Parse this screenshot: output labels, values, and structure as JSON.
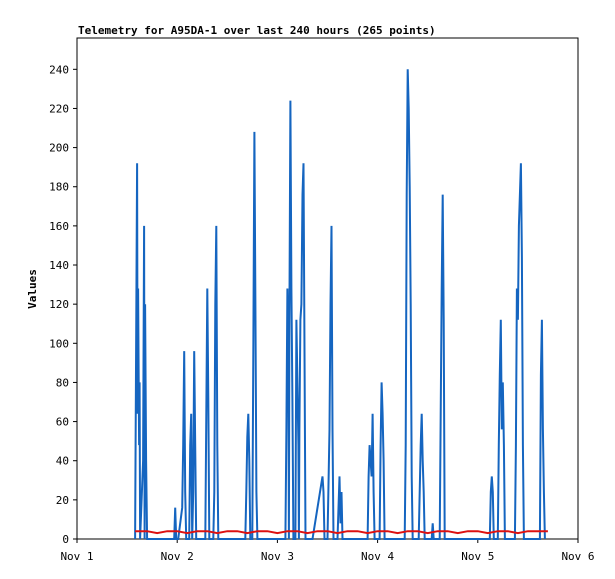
{
  "chart_data": {
    "type": "line",
    "title": "Telemetry for A95DA-1 over last 240 hours (265 points)",
    "xlabel": "",
    "ylabel": "Values",
    "x_ticks": [
      "Nov 1",
      "Nov 2",
      "Nov 3",
      "Nov 4",
      "Nov 5",
      "Nov 6"
    ],
    "xlim": [
      0,
      5
    ],
    "y_ticks": [
      0,
      20,
      40,
      60,
      80,
      100,
      120,
      140,
      160,
      180,
      200,
      220,
      240
    ],
    "ylim": [
      0,
      256
    ],
    "grid": false,
    "legend": "none",
    "series": [
      {
        "color": "#1565c0",
        "points": [
          [
            0.58,
            0
          ],
          [
            0.59,
            96
          ],
          [
            0.6,
            192
          ],
          [
            0.605,
            64
          ],
          [
            0.61,
            128
          ],
          [
            0.62,
            48
          ],
          [
            0.625,
            80
          ],
          [
            0.63,
            0
          ],
          [
            0.66,
            40
          ],
          [
            0.67,
            160
          ],
          [
            0.675,
            0
          ],
          [
            0.68,
            120
          ],
          [
            0.69,
            40
          ],
          [
            0.7,
            0
          ],
          [
            0.97,
            0
          ],
          [
            0.98,
            16
          ],
          [
            0.99,
            0
          ],
          [
            1.01,
            0
          ],
          [
            1.05,
            16
          ],
          [
            1.06,
            48
          ],
          [
            1.07,
            96
          ],
          [
            1.08,
            24
          ],
          [
            1.09,
            0
          ],
          [
            1.12,
            0
          ],
          [
            1.13,
            48
          ],
          [
            1.14,
            64
          ],
          [
            1.15,
            0
          ],
          [
            1.16,
            24
          ],
          [
            1.17,
            96
          ],
          [
            1.18,
            48
          ],
          [
            1.19,
            0
          ],
          [
            1.28,
            0
          ],
          [
            1.29,
            64
          ],
          [
            1.3,
            128
          ],
          [
            1.31,
            72
          ],
          [
            1.32,
            0
          ],
          [
            1.36,
            0
          ],
          [
            1.37,
            24
          ],
          [
            1.38,
            120
          ],
          [
            1.39,
            160
          ],
          [
            1.4,
            48
          ],
          [
            1.41,
            0
          ],
          [
            1.68,
            0
          ],
          [
            1.69,
            24
          ],
          [
            1.7,
            52
          ],
          [
            1.71,
            64
          ],
          [
            1.72,
            40
          ],
          [
            1.73,
            0
          ],
          [
            1.75,
            0
          ],
          [
            1.76,
            104
          ],
          [
            1.77,
            208
          ],
          [
            1.78,
            120
          ],
          [
            1.79,
            24
          ],
          [
            1.8,
            0
          ],
          [
            2.0,
            0
          ],
          [
            2.08,
            0
          ],
          [
            2.09,
            56
          ],
          [
            2.1,
            128
          ],
          [
            2.11,
            88
          ],
          [
            2.115,
            0
          ],
          [
            2.12,
            112
          ],
          [
            2.13,
            224
          ],
          [
            2.14,
            128
          ],
          [
            2.15,
            72
          ],
          [
            2.16,
            0
          ],
          [
            2.18,
            0
          ],
          [
            2.19,
            112
          ],
          [
            2.2,
            80
          ],
          [
            2.21,
            48
          ],
          [
            2.215,
            0
          ],
          [
            2.22,
            56
          ],
          [
            2.23,
            112
          ],
          [
            2.24,
            120
          ],
          [
            2.25,
            176
          ],
          [
            2.26,
            192
          ],
          [
            2.27,
            96
          ],
          [
            2.28,
            0
          ],
          [
            2.35,
            0
          ],
          [
            2.45,
            32
          ],
          [
            2.46,
            24
          ],
          [
            2.47,
            0
          ],
          [
            2.5,
            0
          ],
          [
            2.52,
            56
          ],
          [
            2.53,
            120
          ],
          [
            2.54,
            160
          ],
          [
            2.55,
            56
          ],
          [
            2.56,
            0
          ],
          [
            2.6,
            0
          ],
          [
            2.61,
            16
          ],
          [
            2.62,
            32
          ],
          [
            2.63,
            8
          ],
          [
            2.64,
            24
          ],
          [
            2.65,
            0
          ],
          [
            2.9,
            0
          ],
          [
            2.91,
            32
          ],
          [
            2.92,
            48
          ],
          [
            2.93,
            40
          ],
          [
            2.94,
            32
          ],
          [
            2.95,
            64
          ],
          [
            2.96,
            24
          ],
          [
            2.97,
            0
          ],
          [
            3.0,
            0
          ],
          [
            3.02,
            0
          ],
          [
            3.03,
            48
          ],
          [
            3.04,
            80
          ],
          [
            3.05,
            64
          ],
          [
            3.06,
            40
          ],
          [
            3.07,
            0
          ],
          [
            3.27,
            0
          ],
          [
            3.28,
            48
          ],
          [
            3.29,
            176
          ],
          [
            3.3,
            240
          ],
          [
            3.31,
            220
          ],
          [
            3.32,
            180
          ],
          [
            3.33,
            120
          ],
          [
            3.34,
            32
          ],
          [
            3.35,
            0
          ],
          [
            3.41,
            0
          ],
          [
            3.42,
            24
          ],
          [
            3.43,
            48
          ],
          [
            3.44,
            64
          ],
          [
            3.45,
            40
          ],
          [
            3.46,
            24
          ],
          [
            3.47,
            0
          ],
          [
            3.54,
            0
          ],
          [
            3.55,
            8
          ],
          [
            3.56,
            0
          ],
          [
            3.62,
            0
          ],
          [
            3.63,
            64
          ],
          [
            3.64,
            128
          ],
          [
            3.65,
            176
          ],
          [
            3.66,
            112
          ],
          [
            3.67,
            0
          ],
          [
            4.12,
            0
          ],
          [
            4.13,
            24
          ],
          [
            4.14,
            32
          ],
          [
            4.15,
            24
          ],
          [
            4.16,
            0
          ],
          [
            4.2,
            0
          ],
          [
            4.21,
            48
          ],
          [
            4.22,
            84
          ],
          [
            4.23,
            112
          ],
          [
            4.24,
            56
          ],
          [
            4.25,
            80
          ],
          [
            4.26,
            48
          ],
          [
            4.27,
            0
          ],
          [
            4.37,
            0
          ],
          [
            4.38,
            48
          ],
          [
            4.39,
            128
          ],
          [
            4.4,
            112
          ],
          [
            4.41,
            160
          ],
          [
            4.42,
            176
          ],
          [
            4.43,
            192
          ],
          [
            4.44,
            144
          ],
          [
            4.45,
            48
          ],
          [
            4.46,
            0
          ],
          [
            4.62,
            0
          ],
          [
            4.63,
            84
          ],
          [
            4.64,
            112
          ],
          [
            4.65,
            56
          ],
          [
            4.66,
            24
          ],
          [
            4.67,
            0
          ]
        ]
      },
      {
        "color": "#dd1111",
        "points": [
          [
            0.58,
            4
          ],
          [
            0.7,
            4
          ],
          [
            0.8,
            3
          ],
          [
            0.9,
            4
          ],
          [
            1.0,
            4
          ],
          [
            1.1,
            3
          ],
          [
            1.2,
            4
          ],
          [
            1.3,
            4
          ],
          [
            1.4,
            3
          ],
          [
            1.5,
            4
          ],
          [
            1.6,
            4
          ],
          [
            1.7,
            3
          ],
          [
            1.8,
            4
          ],
          [
            1.9,
            4
          ],
          [
            2.0,
            3
          ],
          [
            2.1,
            4
          ],
          [
            2.2,
            4
          ],
          [
            2.3,
            3
          ],
          [
            2.4,
            4
          ],
          [
            2.5,
            4
          ],
          [
            2.6,
            3
          ],
          [
            2.7,
            4
          ],
          [
            2.8,
            4
          ],
          [
            2.9,
            3
          ],
          [
            3.0,
            4
          ],
          [
            3.1,
            4
          ],
          [
            3.2,
            3
          ],
          [
            3.3,
            4
          ],
          [
            3.4,
            4
          ],
          [
            3.5,
            3
          ],
          [
            3.6,
            4
          ],
          [
            3.7,
            4
          ],
          [
            3.8,
            3
          ],
          [
            3.9,
            4
          ],
          [
            4.0,
            4
          ],
          [
            4.1,
            3
          ],
          [
            4.2,
            4
          ],
          [
            4.3,
            4
          ],
          [
            4.4,
            3
          ],
          [
            4.5,
            4
          ],
          [
            4.6,
            4
          ],
          [
            4.7,
            4
          ]
        ]
      }
    ]
  }
}
